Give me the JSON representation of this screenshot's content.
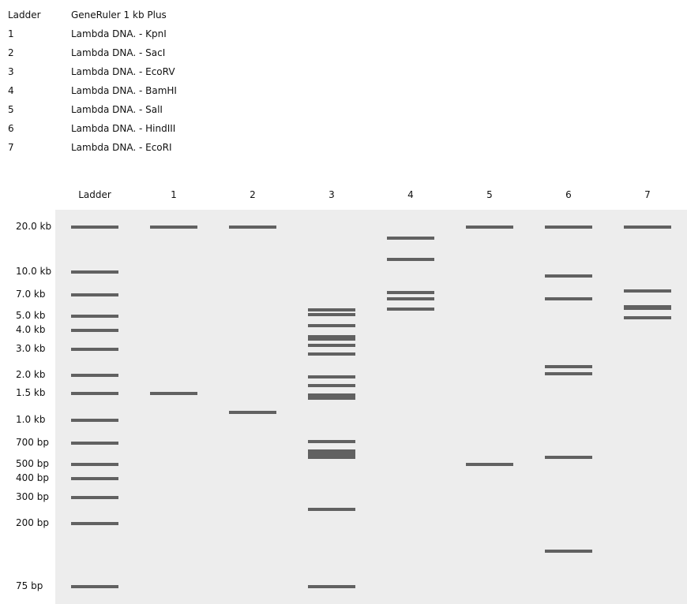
{
  "legend": [
    {
      "key": "Ladder",
      "desc": "GeneRuler 1 kb Plus"
    },
    {
      "key": "1",
      "desc": "Lambda DNA. - KpnI"
    },
    {
      "key": "2",
      "desc": "Lambda DNA. - SacI"
    },
    {
      "key": "3",
      "desc": "Lambda DNA. - EcoRV"
    },
    {
      "key": "4",
      "desc": "Lambda DNA. - BamHI"
    },
    {
      "key": "5",
      "desc": "Lambda DNA. - SalI"
    },
    {
      "key": "6",
      "desc": "Lambda DNA. - HindIII"
    },
    {
      "key": "7",
      "desc": "Lambda DNA. - EcoRI"
    }
  ],
  "lanes": [
    "Ladder",
    "1",
    "2",
    "3",
    "4",
    "5",
    "6",
    "7"
  ],
  "size_markers": [
    {
      "label": "20.0 kb",
      "bp": 20000
    },
    {
      "label": "10.0 kb",
      "bp": 10000
    },
    {
      "label": "7.0 kb",
      "bp": 7000
    },
    {
      "label": "5.0 kb",
      "bp": 5000
    },
    {
      "label": "4.0 kb",
      "bp": 4000
    },
    {
      "label": "3.0 kb",
      "bp": 3000
    },
    {
      "label": "2.0 kb",
      "bp": 2000
    },
    {
      "label": "1.5 kb",
      "bp": 1500
    },
    {
      "label": "1.0 kb",
      "bp": 1000
    },
    {
      "label": "700 bp",
      "bp": 700
    },
    {
      "label": "500 bp",
      "bp": 500
    },
    {
      "label": "400 bp",
      "bp": 400
    },
    {
      "label": "300 bp",
      "bp": 300
    },
    {
      "label": "200 bp",
      "bp": 200
    },
    {
      "label": "75 bp",
      "bp": 75
    }
  ],
  "bands": [
    [
      20000,
      10000,
      7000,
      5000,
      4000,
      3000,
      2000,
      1500,
      1000,
      700,
      500,
      400,
      300,
      200,
      75
    ],
    [
      20000,
      1500
    ],
    [
      20000,
      1120
    ],
    [
      5500,
      5150,
      4300,
      3650,
      3500,
      3200,
      2800,
      1950,
      1700,
      1470,
      1400,
      720,
      620,
      590,
      560,
      250,
      75
    ],
    [
      16800,
      12200,
      7250,
      6550,
      5600
    ],
    [
      20000,
      500
    ],
    [
      20000,
      9400,
      6550,
      2300,
      2050,
      560,
      130
    ],
    [
      20000,
      7400,
      5800,
      5650,
      4900
    ]
  ]
}
